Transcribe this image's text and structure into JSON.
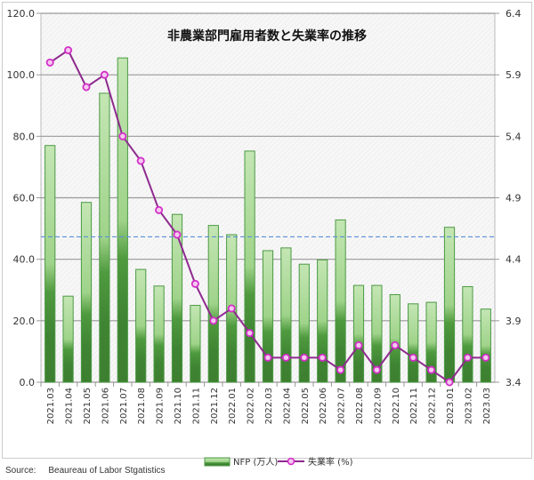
{
  "chart_data": {
    "type": "bar",
    "title": "非農業部門雇用者数と失業率の推移",
    "categories": [
      "2021.03",
      "2021.04",
      "2021.05",
      "2021.06",
      "2021.07",
      "2021.08",
      "2021.09",
      "2021.10",
      "2021.11",
      "2021.12",
      "2022.01",
      "2022.02",
      "2022.03",
      "2022.04",
      "2022.05",
      "2022.06",
      "2022.07",
      "2022.08",
      "2022.09",
      "2022.10",
      "2022.11",
      "2022.12",
      "2023.01",
      "2023.02",
      "2023.03"
    ],
    "series": [
      {
        "name": "NFP (万人)",
        "type": "bar",
        "axis": "left",
        "color": "#5a9e4a",
        "values": [
          77.0,
          28.0,
          58.5,
          94.0,
          105.5,
          36.7,
          31.3,
          54.6,
          25.0,
          51.0,
          48.0,
          75.2,
          42.8,
          43.7,
          38.4,
          39.8,
          52.8,
          31.5,
          31.5,
          28.5,
          25.5,
          26.0,
          50.4,
          31.1,
          23.8
        ]
      },
      {
        "name": "失業率 (%)",
        "type": "line",
        "axis": "right",
        "color": "#8e2a8e",
        "values": [
          6.0,
          6.1,
          5.8,
          5.9,
          5.4,
          5.2,
          4.8,
          4.6,
          4.2,
          3.9,
          4.0,
          3.8,
          3.6,
          3.6,
          3.6,
          3.6,
          3.5,
          3.7,
          3.5,
          3.7,
          3.6,
          3.5,
          3.4,
          3.6,
          3.6
        ]
      }
    ],
    "reference_line": {
      "value": 47.3,
      "axis": "left",
      "style": "dashed",
      "color": "#5b8fd6"
    },
    "y_left": {
      "ylim": [
        0,
        120
      ],
      "ticks": [
        "0.0",
        "20.0",
        "40.0",
        "60.0",
        "80.0",
        "100.0",
        "120.0"
      ]
    },
    "y_right": {
      "ylim": [
        3.4,
        6.4
      ],
      "ticks": [
        "3.4",
        "3.9",
        "4.4",
        "4.9",
        "5.4",
        "5.9",
        "6.4"
      ]
    },
    "grid": true,
    "legend_position": "bottom"
  },
  "source": "Source:     Beaureau of Labor Stgatistics"
}
